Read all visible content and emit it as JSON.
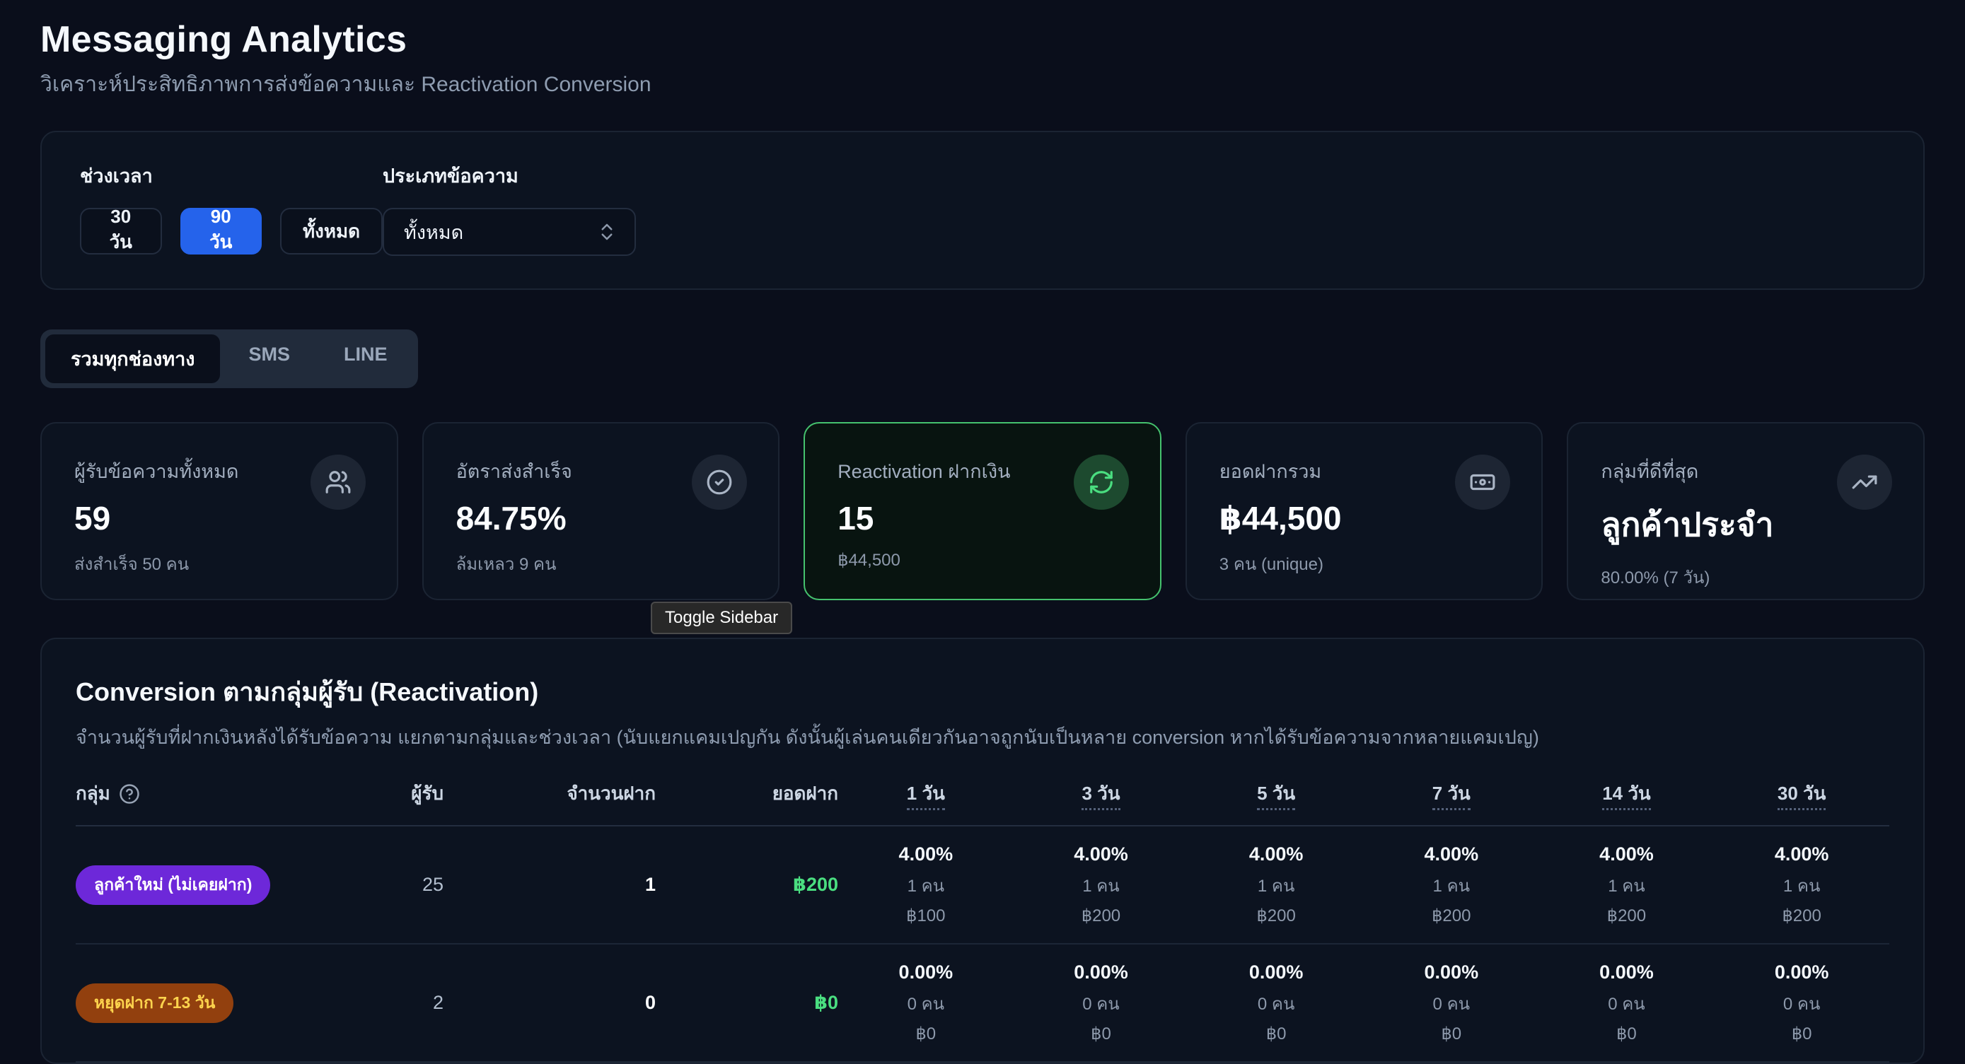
{
  "page": {
    "title": "Messaging Analytics",
    "subtitle": "วิเคราะห์ประสิทธิภาพการส่งข้อความและ Reactivation Conversion"
  },
  "colors": {
    "primary_blue": "#2563eb",
    "success_green": "#4ade80",
    "highlight_card_border": "#45c26e"
  },
  "filters": {
    "time_range_label": "ช่วงเวลา",
    "time_range_options": [
      {
        "label": "30 วัน",
        "active": false
      },
      {
        "label": "90 วัน",
        "active": true
      },
      {
        "label": "ทั้งหมด",
        "active": false
      }
    ],
    "message_type_label": "ประเภทข้อความ",
    "message_type_value": "ทั้งหมด"
  },
  "channel_tabs": [
    {
      "label": "รวมทุกช่องทาง",
      "active": true
    },
    {
      "label": "SMS",
      "active": false
    },
    {
      "label": "LINE",
      "active": false
    }
  ],
  "stat_cards": [
    {
      "title": "ผู้รับข้อความทั้งหมด",
      "value": "59",
      "subtitle": "ส่งสำเร็จ 50 คน",
      "icon": "users-icon",
      "highlighted": false
    },
    {
      "title": "อัตราส่งสำเร็จ",
      "value": "84.75%",
      "subtitle": "ล้มเหลว 9 คน",
      "icon": "check-circle-icon",
      "highlighted": false
    },
    {
      "title": "Reactivation ฝากเงิน",
      "value": "15",
      "subtitle": "฿44,500",
      "icon": "refresh-icon",
      "highlighted": true
    },
    {
      "title": "ยอดฝากรวม",
      "value": "฿44,500",
      "subtitle": "3 คน (unique)",
      "icon": "banknote-icon",
      "highlighted": false
    },
    {
      "title": "กลุ่มที่ดีที่สุด",
      "value": "ลูกค้าประจำ",
      "subtitle": "80.00% (7 วัน)",
      "icon": "trending-up-icon",
      "highlighted": false
    }
  ],
  "tooltip": {
    "text": "Toggle Sidebar"
  },
  "conversion_section": {
    "title": "Conversion ตามกลุ่มผู้รับ (Reactivation)",
    "description": "จำนวนผู้รับที่ฝากเงินหลังได้รับข้อความ แยกตามกลุ่มและช่วงเวลา (นับแยกแคมเปญกัน ดังนั้นผู้เล่นคนเดียวกันอาจถูกนับเป็นหลาย conversion หากได้รับข้อความจากหลายแคมเปญ)",
    "columns": [
      "กลุ่ม",
      "ผู้รับ",
      "จำนวนฝาก",
      "ยอดฝาก",
      "1 วัน",
      "3 วัน",
      "5 วัน",
      "7 วัน",
      "14 วัน",
      "30 วัน"
    ],
    "amount_color": "#4ade80",
    "rows": [
      {
        "group": "ลูกค้าใหม่ (ไม่เคยฝาก)",
        "badge": {
          "bg": "#6d28d9",
          "text": "#ffffff"
        },
        "recipients": "25",
        "deposits": "1",
        "total_amount": "฿200",
        "periods": [
          {
            "rate": "4.00%",
            "people": "1 คน",
            "amount": "฿100"
          },
          {
            "rate": "4.00%",
            "people": "1 คน",
            "amount": "฿200"
          },
          {
            "rate": "4.00%",
            "people": "1 คน",
            "amount": "฿200"
          },
          {
            "rate": "4.00%",
            "people": "1 คน",
            "amount": "฿200"
          },
          {
            "rate": "4.00%",
            "people": "1 คน",
            "amount": "฿200"
          },
          {
            "rate": "4.00%",
            "people": "1 คน",
            "amount": "฿200"
          }
        ]
      },
      {
        "group": "หยุดฝาก 7-13 วัน",
        "badge": {
          "bg": "#92400e",
          "text": "#fcd34d"
        },
        "recipients": "2",
        "deposits": "0",
        "total_amount": "฿0",
        "periods": [
          {
            "rate": "0.00%",
            "people": "0 คน",
            "amount": "฿0"
          },
          {
            "rate": "0.00%",
            "people": "0 คน",
            "amount": "฿0"
          },
          {
            "rate": "0.00%",
            "people": "0 คน",
            "amount": "฿0"
          },
          {
            "rate": "0.00%",
            "people": "0 คน",
            "amount": "฿0"
          },
          {
            "rate": "0.00%",
            "people": "0 คน",
            "amount": "฿0"
          },
          {
            "rate": "0.00%",
            "people": "0 คน",
            "amount": "฿0"
          }
        ]
      }
    ]
  }
}
